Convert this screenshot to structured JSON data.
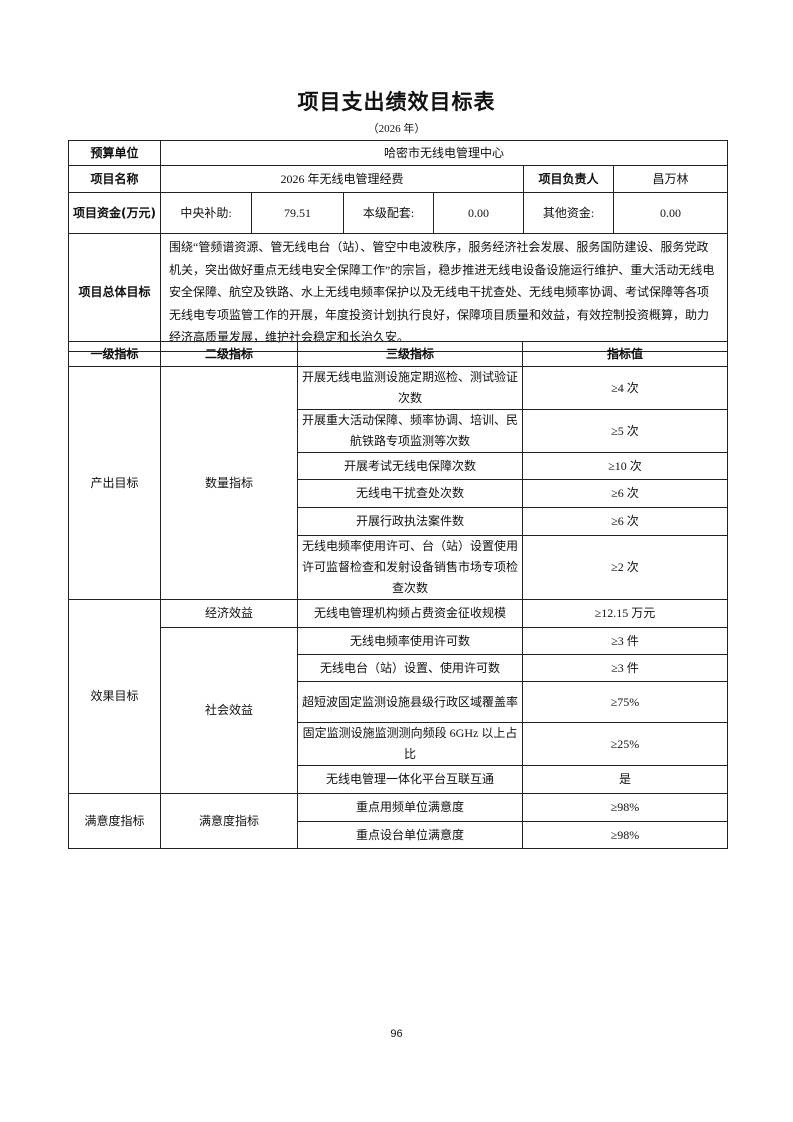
{
  "title": "项目支出绩效目标表",
  "subtitle": "（2026 年）",
  "header": {
    "budget_unit_label": "预算单位",
    "budget_unit_value": "哈密市无线电管理中心",
    "project_name_label": "项目名称",
    "project_name_value": "2026 年无线电管理经费",
    "owner_label": "项目负责人",
    "owner_value": "昌万林",
    "funds_label": "项目资金(万元)",
    "central_label": "中央补助:",
    "central_value": "79.51",
    "local_label": "本级配套:",
    "local_value": "0.00",
    "other_label": "其他资金:",
    "other_value": "0.00",
    "goal_label": "项目总体目标",
    "goal_text": "围绕“管频谱资源、管无线电台（站）、管空中电波秩序，服务经济社会发展、服务国防建设、服务党政机关，突出做好重点无线电安全保障工作”的宗旨，稳步推进无线电设备设施运行维护、重大活动无线电安全保障、航空及铁路、水上无线电频率保护以及无线电干扰查处、无线电频率协调、考试保障等各项无线电专项监管工作的开展，年度投资计划执行良好，保障项目质量和效益，有效控制投资概算，助力经济高质量发展，维护社会稳定和长治久安。"
  },
  "columns": [
    "一级指标",
    "二级指标",
    "三级指标",
    "指标值"
  ],
  "groups": [
    {
      "level1": "产出目标",
      "subs": [
        {
          "level2": "数量指标",
          "rows": [
            {
              "level3": "开展无线电监测设施定期巡检、测试验证次数",
              "value": "≥4 次"
            },
            {
              "level3": "开展重大活动保障、频率协调、培训、民航铁路专项监测等次数",
              "value": "≥5 次"
            },
            {
              "level3": "开展考试无线电保障次数",
              "value": "≥10 次"
            },
            {
              "level3": "无线电干扰查处次数",
              "value": "≥6 次"
            },
            {
              "level3": "开展行政执法案件数",
              "value": "≥6 次"
            },
            {
              "level3": "无线电频率使用许可、台（站）设置使用许可监督检查和发射设备销售市场专项检查次数",
              "value": "≥2 次"
            }
          ]
        }
      ]
    },
    {
      "level1": "效果目标",
      "subs": [
        {
          "level2": "经济效益",
          "rows": [
            {
              "level3": "无线电管理机构频占费资金征收规模",
              "value": "≥12.15 万元"
            }
          ]
        },
        {
          "level2": "社会效益",
          "rows": [
            {
              "level3": "无线电频率使用许可数",
              "value": "≥3 件"
            },
            {
              "level3": "无线电台（站）设置、使用许可数",
              "value": "≥3 件"
            },
            {
              "level3": "超短波固定监测设施县级行政区域覆盖率",
              "value": "≥75%"
            },
            {
              "level3": "固定监测设施监测测向频段 6GHz 以上占比",
              "value": "≥25%"
            },
            {
              "level3": "无线电管理一体化平台互联互通",
              "value": "是"
            }
          ]
        }
      ]
    },
    {
      "level1": "满意度指标",
      "subs": [
        {
          "level2": "满意度指标",
          "rows": [
            {
              "level3": "重点用频单位满意度",
              "value": "≥98%"
            },
            {
              "level3": "重点设台单位满意度",
              "value": "≥98%"
            }
          ]
        }
      ]
    }
  ],
  "page_number": "96"
}
